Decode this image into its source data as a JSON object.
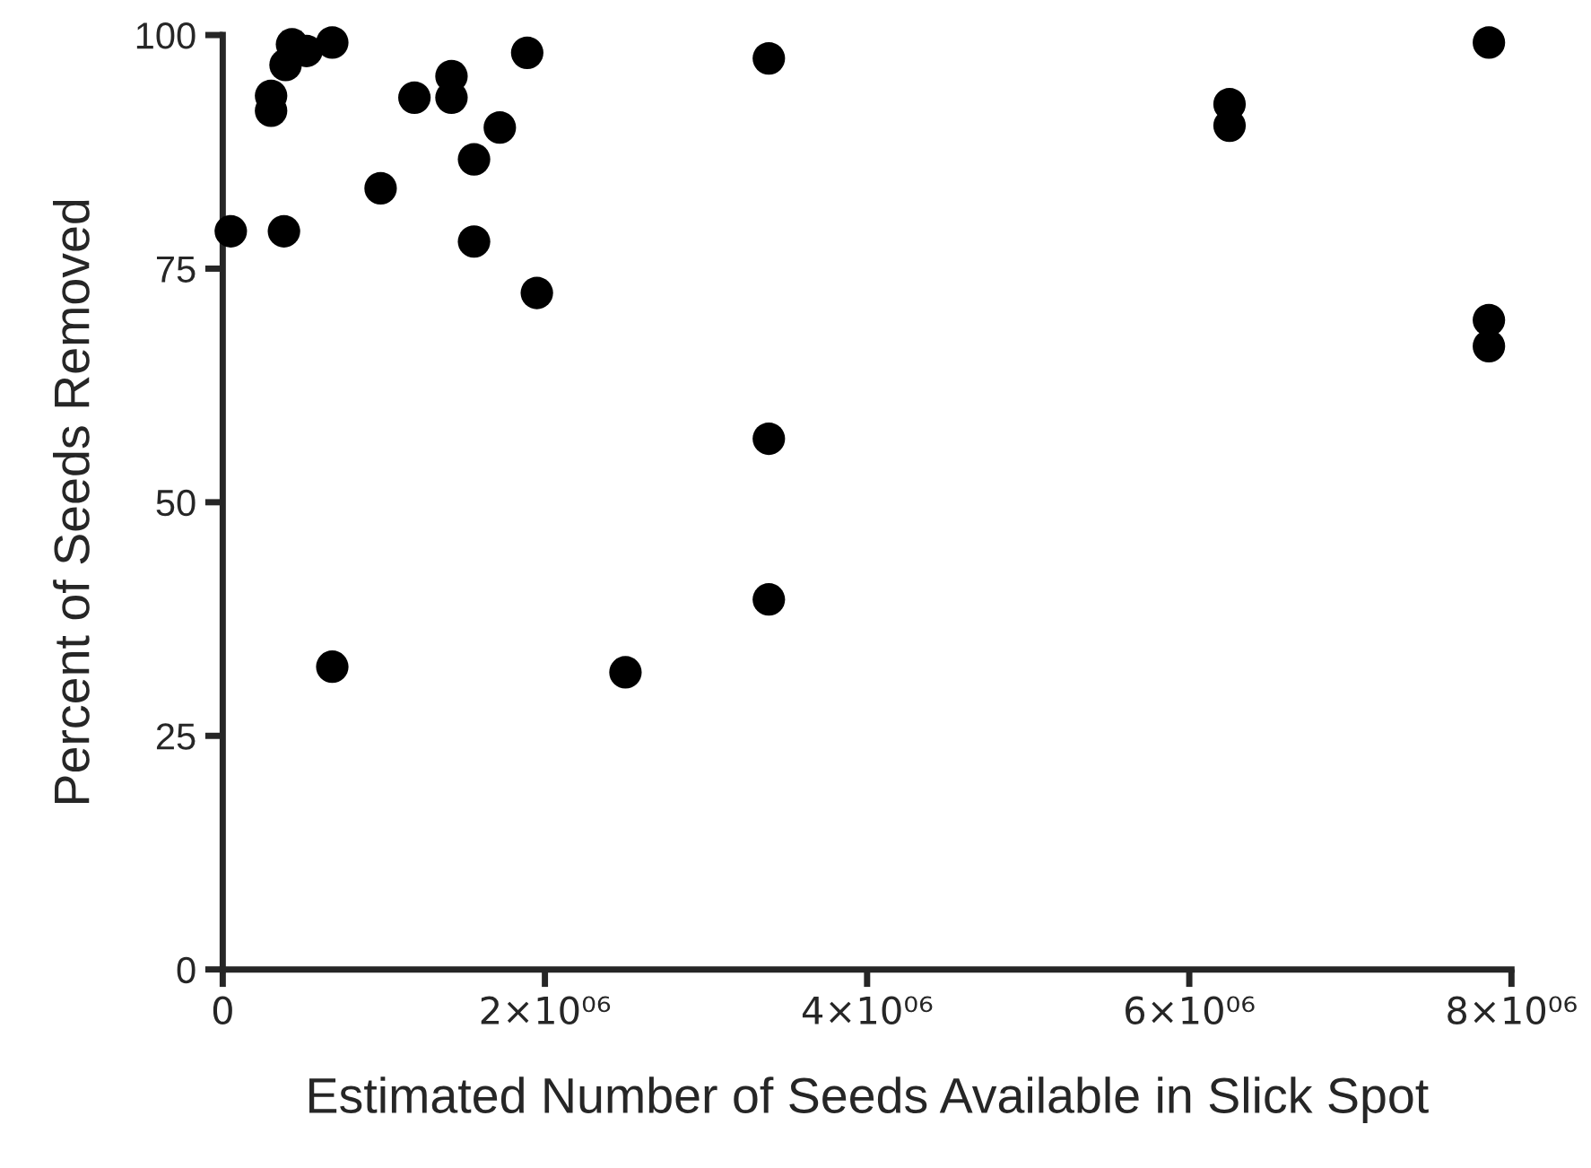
{
  "chart_data": {
    "type": "scatter",
    "xlabel": "Estimated Number of Seeds Available in Slick Spot",
    "ylabel": "Percent of Seeds Removed",
    "x": [
      50000,
      300000,
      300000,
      390000,
      430000,
      520000,
      680000,
      380000,
      680000,
      980000,
      1190000,
      1420000,
      1420000,
      1720000,
      1560000,
      1560000,
      1890000,
      1950000,
      2500000,
      3390000,
      3390000,
      3390000,
      6250000,
      6250000,
      7860000,
      7860000,
      7860000
    ],
    "series": [
      {
        "color": "#000000",
        "values": [
          79.0,
          93.5,
          91.9,
          96.8,
          99.0,
          98.3,
          99.2,
          79.0,
          32.4,
          83.6,
          93.3,
          95.6,
          93.3,
          90.1,
          86.7,
          77.9,
          98.1,
          72.4,
          31.8,
          97.5,
          56.8,
          39.6,
          92.6,
          90.3,
          99.2,
          69.5,
          66.7
        ]
      }
    ],
    "marker": "circle",
    "xlim": [
      0,
      8000000
    ],
    "xticks": [
      0,
      {
        "value": 2000000,
        "label": "2×10⁰⁶"
      },
      {
        "value": 4000000,
        "label": "4×10⁰⁶"
      },
      {
        "value": 6000000,
        "label": "6×10⁰⁶"
      },
      {
        "value": 8000000,
        "label": "8×10⁰⁶"
      }
    ],
    "ylim": [
      0,
      100
    ],
    "yticks": [
      0,
      25,
      50,
      75,
      100
    ],
    "grid": false,
    "legend": false
  }
}
